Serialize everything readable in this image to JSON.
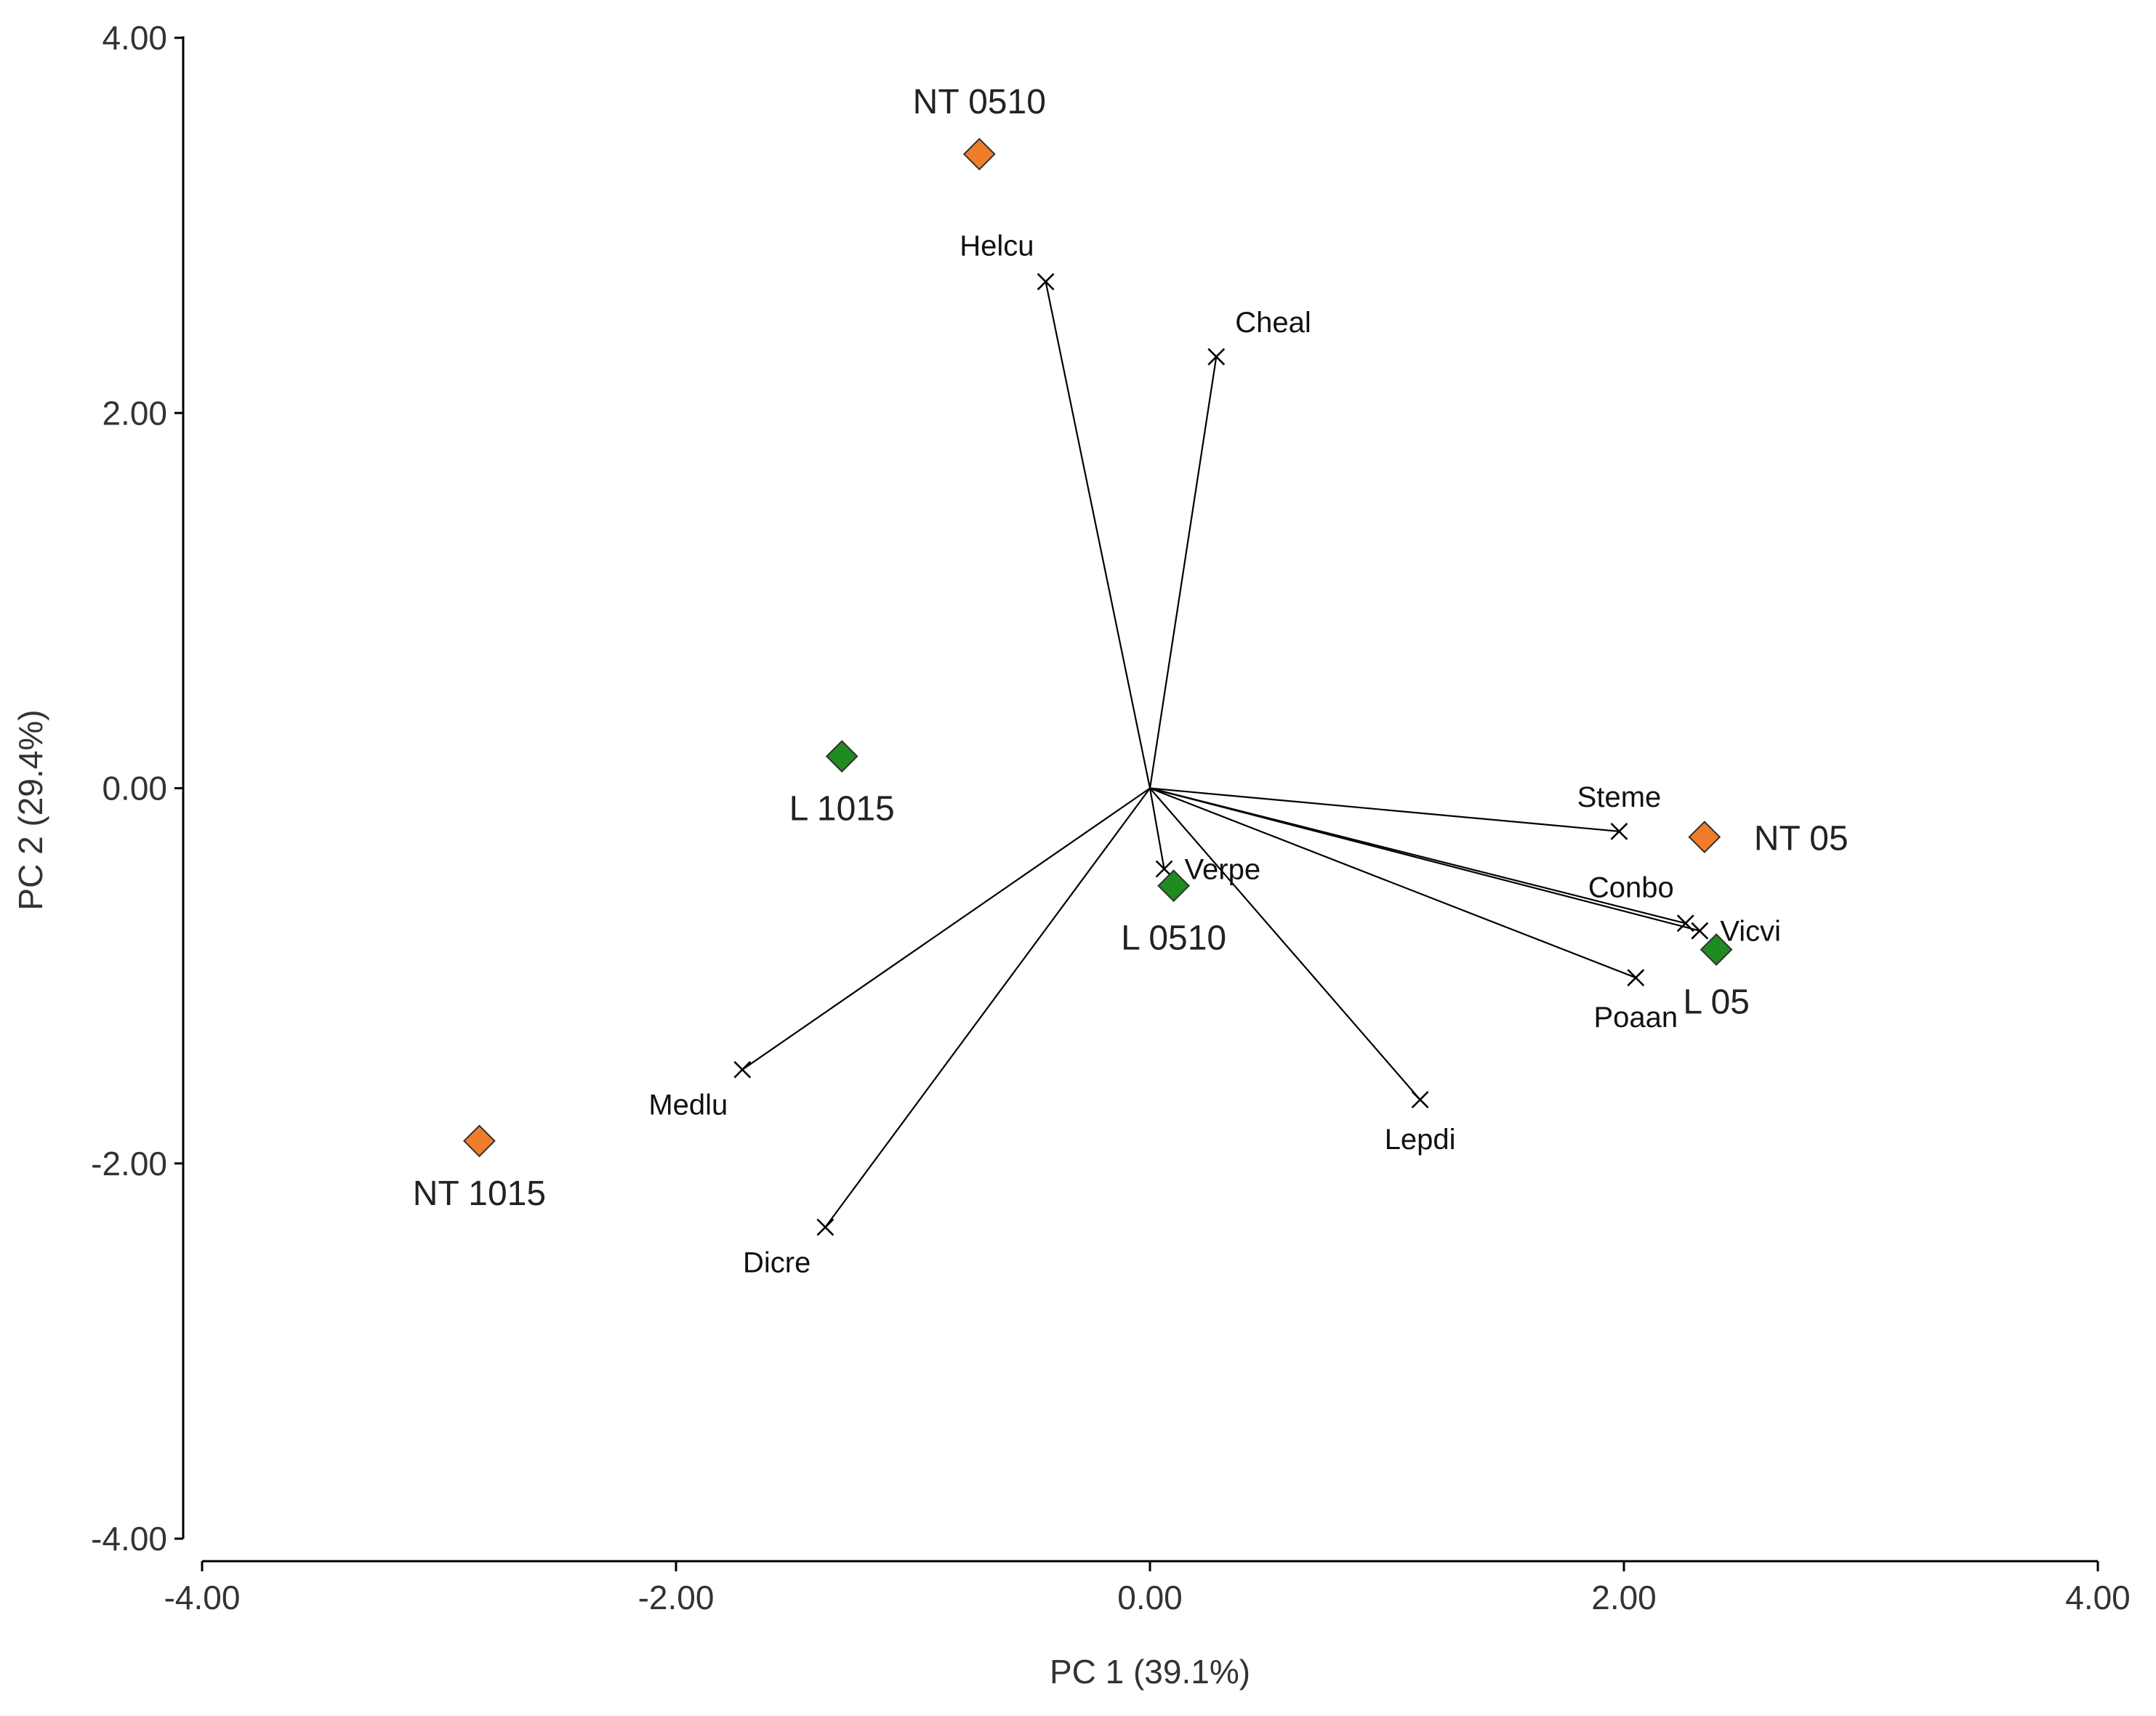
{
  "chart_data": {
    "type": "scatter",
    "subtype": "pca-biplot",
    "xlabel": "PC 1 (39.1%)",
    "ylabel": "PC 2 (29.4%)",
    "xlim": [
      -4,
      4
    ],
    "ylim": [
      -4,
      4
    ],
    "x_ticks": [
      {
        "value": -4,
        "label": "-4.00"
      },
      {
        "value": -2,
        "label": "-2.00"
      },
      {
        "value": 0,
        "label": "0.00"
      },
      {
        "value": 2,
        "label": "2.00"
      },
      {
        "value": 4,
        "label": "4.00"
      }
    ],
    "y_ticks": [
      {
        "value": 4,
        "label": "4.00"
      },
      {
        "value": 2,
        "label": "2.00"
      },
      {
        "value": 0,
        "label": "0.00"
      },
      {
        "value": -2,
        "label": "-2.00"
      },
      {
        "value": -4,
        "label": "-4.00"
      }
    ],
    "grid": false,
    "series": [
      {
        "name": "NT (orange)",
        "color": "#F07D2A",
        "marker": "diamond",
        "points": [
          {
            "label": "NT 0510",
            "x": -0.72,
            "y": 3.38,
            "label_side": "above"
          },
          {
            "label": "NT 05",
            "x": 2.34,
            "y": -0.26,
            "label_side": "right"
          },
          {
            "label": "NT 1015",
            "x": -2.83,
            "y": -1.88,
            "label_side": "below"
          }
        ]
      },
      {
        "name": "L (green)",
        "color": "#1E8C1E",
        "marker": "diamond",
        "points": [
          {
            "label": "L 1015",
            "x": -1.3,
            "y": 0.17,
            "label_side": "below"
          },
          {
            "label": "L 0510",
            "x": 0.1,
            "y": -0.52,
            "label_side": "below"
          },
          {
            "label": "L 05",
            "x": 2.39,
            "y": -0.86,
            "label_side": "below"
          }
        ]
      }
    ],
    "vectors": [
      {
        "name": "Helcu",
        "x": -0.44,
        "y": 2.7,
        "label_side": "upper-left"
      },
      {
        "name": "Cheal",
        "x": 0.28,
        "y": 2.3,
        "label_side": "upper-right"
      },
      {
        "name": "Steme",
        "x": 1.98,
        "y": -0.23,
        "label_side": "above"
      },
      {
        "name": "Conbo",
        "x": 2.26,
        "y": -0.72,
        "label_side": "upper-left"
      },
      {
        "name": "Vicvi",
        "x": 2.32,
        "y": -0.76,
        "label_side": "right"
      },
      {
        "name": "Poaan",
        "x": 2.05,
        "y": -1.01,
        "label_side": "below"
      },
      {
        "name": "Lepdi",
        "x": 1.14,
        "y": -1.66,
        "label_side": "below"
      },
      {
        "name": "Verpe",
        "x": 0.06,
        "y": -0.43,
        "label_side": "right"
      },
      {
        "name": "Medlu",
        "x": -1.72,
        "y": -1.5,
        "label_side": "below-left"
      },
      {
        "name": "Dicre",
        "x": -1.37,
        "y": -2.34,
        "label_side": "below-left"
      }
    ]
  }
}
